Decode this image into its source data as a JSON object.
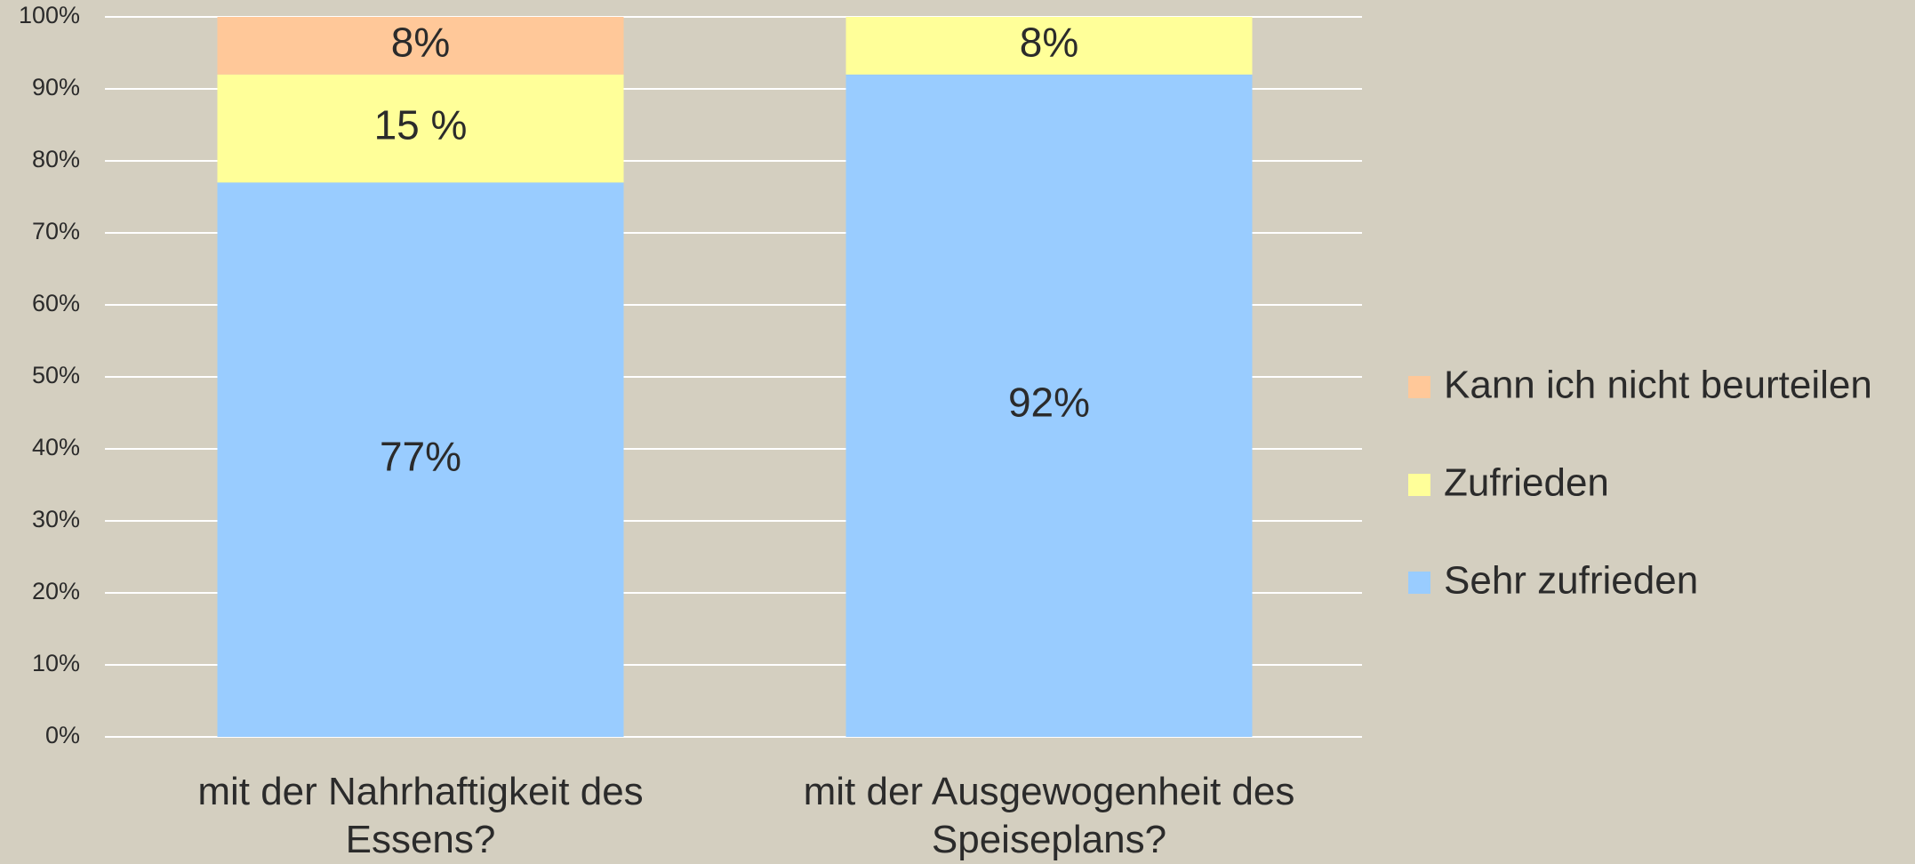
{
  "chart_data": {
    "type": "stacked_bar",
    "categories": [
      "mit der Nahrhaftigkeit des Essens?",
      "mit der Ausgewogenheit des Speiseplans?"
    ],
    "series": [
      {
        "name": "Sehr zufrieden",
        "color": "#99ccff",
        "values": [
          77,
          92
        ],
        "value_labels": [
          "77%",
          "92%"
        ]
      },
      {
        "name": "Zufrieden",
        "color": "#ffff99",
        "values": [
          15,
          8
        ],
        "value_labels": [
          "15 %",
          "8%"
        ]
      },
      {
        "name": "Kann ich nicht beurteilen",
        "color": "#ffc899",
        "values": [
          8,
          null
        ],
        "value_labels": [
          "8%",
          null
        ]
      }
    ],
    "ylim": [
      0,
      100
    ],
    "yticks": [
      {
        "value": 0,
        "label": "0%"
      },
      {
        "value": 10,
        "label": "10%"
      },
      {
        "value": 20,
        "label": "20%"
      },
      {
        "value": 30,
        "label": "30%"
      },
      {
        "value": 40,
        "label": "40%"
      },
      {
        "value": 50,
        "label": "50%"
      },
      {
        "value": 60,
        "label": "60%"
      },
      {
        "value": 70,
        "label": "70%"
      },
      {
        "value": 80,
        "label": "80%"
      },
      {
        "value": 90,
        "label": "90%"
      },
      {
        "value": 100,
        "label": "100%"
      }
    ],
    "grid": true,
    "legend": "right"
  }
}
